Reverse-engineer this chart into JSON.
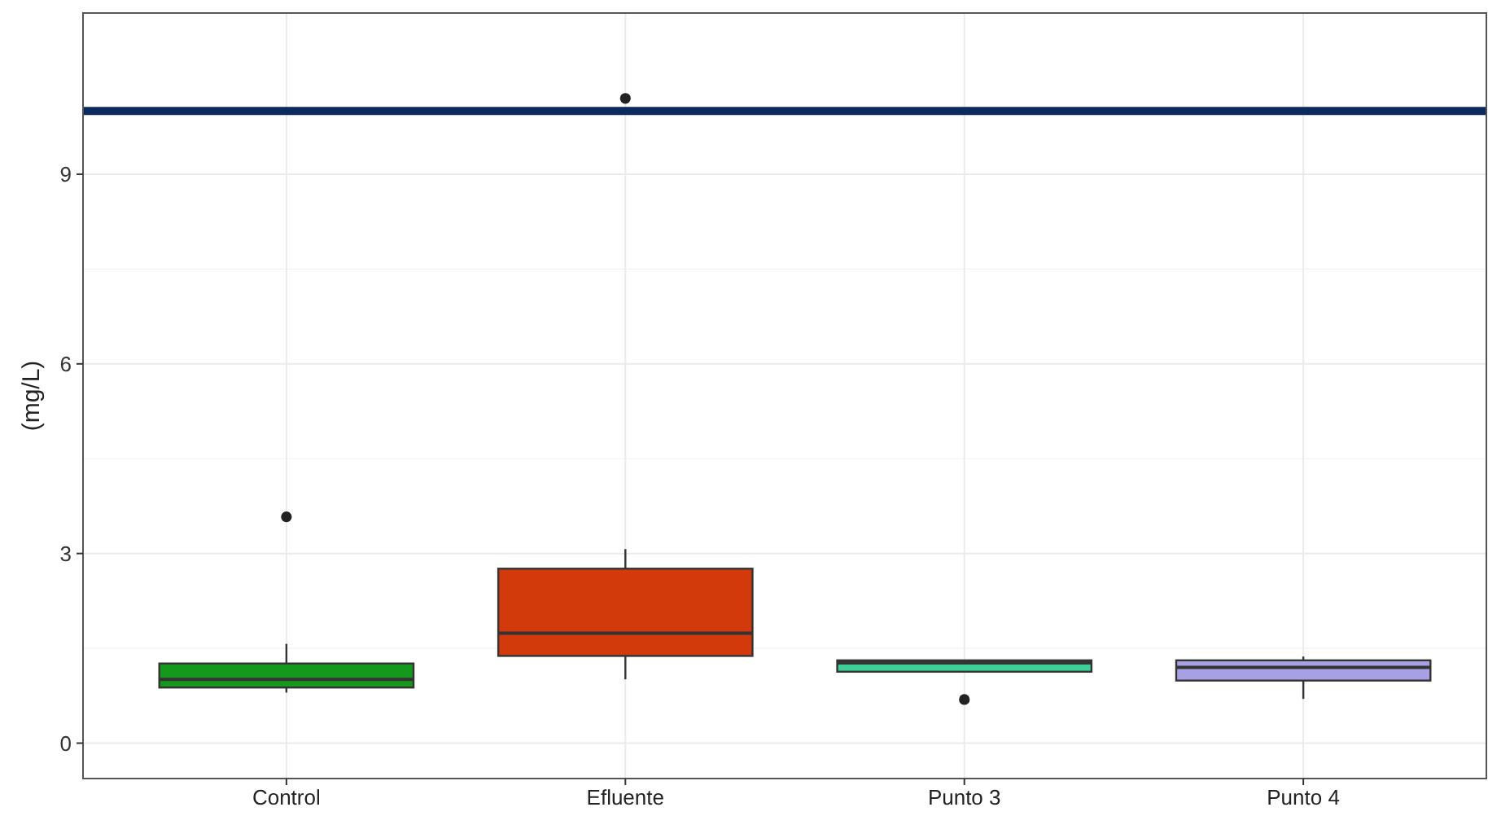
{
  "chart_data": {
    "type": "box",
    "ylabel": "(mg/L)",
    "categories": [
      "Control",
      "Efluente",
      "Punto 3",
      "Punto 4"
    ],
    "boxes": [
      {
        "low": 0.8,
        "q1": 0.88,
        "median": 1.01,
        "q3": 1.26,
        "high": 1.57,
        "outliers": [
          3.58
        ]
      },
      {
        "low": 1.01,
        "q1": 1.38,
        "median": 1.74,
        "q3": 2.76,
        "high": 3.07,
        "outliers": [
          10.2
        ]
      },
      {
        "low": 1.13,
        "q1": 1.13,
        "median": 1.27,
        "q3": 1.31,
        "high": 1.31,
        "outliers": [
          0.69
        ]
      },
      {
        "low": 0.7,
        "q1": 0.99,
        "median": 1.2,
        "q3": 1.31,
        "high": 1.37
      }
    ],
    "colors": [
      "#14991c",
      "#d2390b",
      "#3ecf98",
      "#a8a0e4"
    ],
    "ylim": [
      -0.56,
      11.55
    ],
    "yticks": [
      0,
      3,
      6,
      9
    ],
    "grid": true,
    "ref_lines": [
      {
        "axis": "y",
        "value": 10,
        "color": "#0b2a5e"
      }
    ]
  }
}
